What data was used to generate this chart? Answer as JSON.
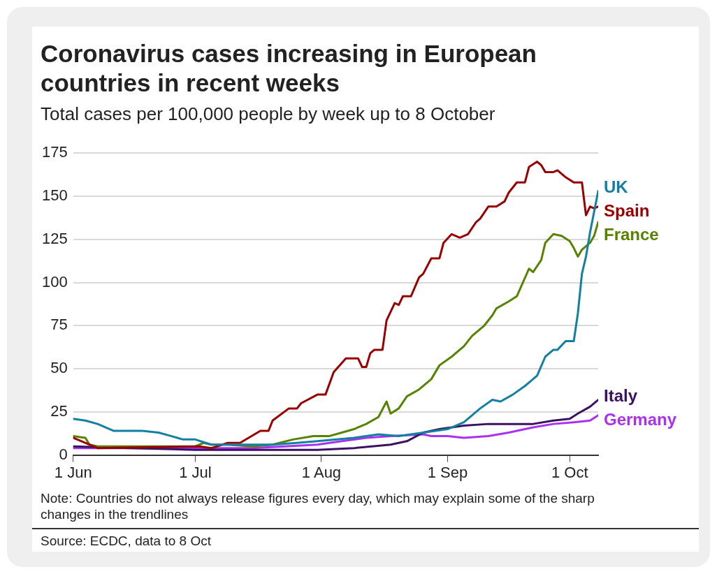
{
  "chart_data": {
    "type": "line",
    "title": "Coronavirus cases increasing in European countries in recent weeks",
    "subtitle": "Total cases per 100,000 people by week up to 8 October",
    "xlim": [
      "--06-01",
      "--10-08"
    ],
    "xticks": [
      {
        "value": "--06-01",
        "label": "1 Jun"
      },
      {
        "value": "--07-01",
        "label": "1 Jul"
      },
      {
        "value": "--08-01",
        "label": "1 Aug"
      },
      {
        "value": "--09-01",
        "label": "1 Sep"
      },
      {
        "value": "--10-01",
        "label": "1 Oct"
      }
    ],
    "ylim": [
      0,
      175
    ],
    "yticks": [
      0,
      25,
      50,
      75,
      100,
      125,
      150,
      175
    ],
    "grid": "y",
    "legend": false,
    "marker": "none",
    "line_style": "solid",
    "series": [
      {
        "name": "UK",
        "color": "#1380a1",
        "x": [
          "--06-01",
          "--06-04",
          "--06-07",
          "--06-11",
          "--06-14",
          "--06-18",
          "--06-22",
          "--06-25",
          "--06-28",
          "--07-01",
          "--07-05",
          "--07-20",
          "--07-26",
          "--07-31",
          "--08-09",
          "--08-15",
          "--08-20",
          "--08-26",
          "--09-01",
          "--09-05",
          "--09-09",
          "--09-12",
          "--09-14",
          "--09-17",
          "--09-20",
          "--09-23",
          "--09-25",
          "--09-27",
          "--09-28",
          "--09-30",
          "--10-02",
          "--10-03",
          "--10-04",
          "--10-05",
          "--10-06",
          "--10-08"
        ],
        "values": [
          21,
          20,
          18,
          14,
          14,
          14,
          13,
          11,
          9,
          9,
          6,
          6,
          7,
          8,
          10,
          12,
          11,
          13,
          15,
          19,
          27,
          32,
          31,
          35,
          40,
          46,
          57,
          61,
          61,
          66,
          66,
          82,
          105,
          115,
          129,
          153
        ]
      },
      {
        "name": "Spain",
        "color": "#990000",
        "x": [
          "--06-01",
          "--06-07",
          "--07-02",
          "--07-05",
          "--07-09",
          "--07-12",
          "--07-17",
          "--07-19",
          "--07-20",
          "--07-24",
          "--07-26",
          "--07-27",
          "--07-31",
          "--08-02",
          "--08-04",
          "--08-07",
          "--08-10",
          "--08-11",
          "--08-12",
          "--08-13",
          "--08-14",
          "--08-16",
          "--08-17",
          "--08-19",
          "--08-20",
          "--08-21",
          "--08-23",
          "--08-25",
          "--08-26",
          "--08-28",
          "--08-30",
          "--08-31",
          "--09-02",
          "--09-04",
          "--09-06",
          "--09-08",
          "--09-09",
          "--09-11",
          "--09-13",
          "--09-15",
          "--09-16",
          "--09-18",
          "--09-20",
          "--09-21",
          "--09-23",
          "--09-24",
          "--09-25",
          "--09-27",
          "--09-28",
          "--09-30",
          "--10-02",
          "--10-04",
          "--10-05",
          "--10-06",
          "--10-07",
          "--10-08"
        ],
        "values": [
          10,
          4,
          5,
          4,
          7,
          7,
          14,
          14,
          20,
          27,
          27,
          30,
          35,
          35,
          48,
          56,
          56,
          51,
          51,
          59,
          61,
          61,
          78,
          88,
          87,
          92,
          92,
          103,
          105,
          114,
          114,
          123,
          128,
          126,
          128,
          135,
          137,
          144,
          144,
          147,
          152,
          158,
          158,
          167,
          170,
          168,
          164,
          164,
          165,
          161,
          158,
          158,
          139,
          144,
          143,
          144
        ]
      },
      {
        "name": "France",
        "color": "#588300",
        "x": [
          "--06-01",
          "--06-04",
          "--06-05",
          "--06-07",
          "--07-01",
          "--07-03",
          "--07-05",
          "--07-09",
          "--07-15",
          "--07-20",
          "--07-25",
          "--07-30",
          "--08-03",
          "--08-06",
          "--08-09",
          "--08-12",
          "--08-15",
          "--08-17",
          "--08-18",
          "--08-20",
          "--08-22",
          "--08-25",
          "--08-28",
          "--08-30",
          "--09-02",
          "--09-05",
          "--09-07",
          "--09-10",
          "--09-12",
          "--09-13",
          "--09-16",
          "--09-18",
          "--09-21",
          "--09-22",
          "--09-24",
          "--09-25",
          "--09-27",
          "--09-29",
          "--10-01",
          "--10-02",
          "--10-03",
          "--10-04",
          "--10-06",
          "--10-07",
          "--10-08"
        ],
        "values": [
          11,
          10,
          6,
          5,
          5,
          7,
          6,
          6,
          5,
          6,
          9,
          11,
          11,
          13,
          15,
          18,
          22,
          31,
          24,
          27,
          34,
          38,
          44,
          52,
          57,
          63,
          69,
          75,
          81,
          85,
          89,
          92,
          108,
          106,
          113,
          123,
          128,
          127,
          124,
          120,
          115,
          119,
          123,
          127,
          135
        ]
      },
      {
        "name": "Italy",
        "color": "#3b1262",
        "x": [
          "--06-01",
          "--06-15",
          "--07-01",
          "--07-20",
          "--07-31",
          "--08-09",
          "--08-18",
          "--08-22",
          "--08-26",
          "--08-30",
          "--09-05",
          "--09-11",
          "--09-16",
          "--09-22",
          "--09-27",
          "--10-01",
          "--10-03",
          "--10-06",
          "--10-08"
        ],
        "values": [
          5,
          4,
          3,
          3,
          3,
          4,
          6,
          8,
          13,
          15,
          17,
          18,
          18,
          18,
          20,
          21,
          24,
          28,
          32
        ]
      },
      {
        "name": "Germany",
        "color": "#a832f0",
        "x": [
          "--06-01",
          "--06-15",
          "--07-01",
          "--07-15",
          "--07-31",
          "--08-06",
          "--08-12",
          "--08-18",
          "--08-26",
          "--08-28",
          "--09-01",
          "--09-05",
          "--09-11",
          "--09-16",
          "--09-22",
          "--09-27",
          "--10-02",
          "--10-06",
          "--10-08"
        ],
        "values": [
          4,
          4,
          4,
          4,
          6,
          8,
          10,
          11,
          12,
          11,
          11,
          10,
          11,
          13,
          16,
          18,
          19,
          20,
          23
        ]
      }
    ],
    "annotations": [
      "Note: Countries do not always release figures every day, which may explain some of the sharp changes in the trendlines",
      "Source: ECDC, data to 8 Oct"
    ]
  }
}
